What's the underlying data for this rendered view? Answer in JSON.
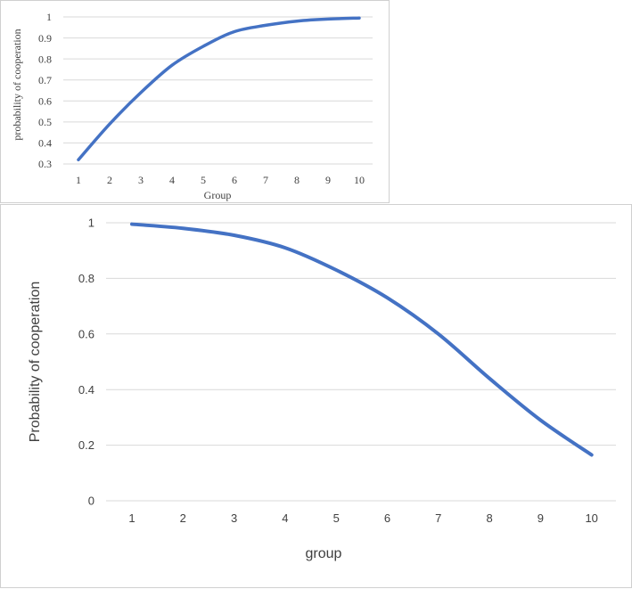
{
  "chart_data": [
    {
      "type": "line",
      "title": "",
      "xlabel": "Group",
      "ylabel": "probability of cooperation",
      "categories": [
        "1",
        "2",
        "3",
        "4",
        "5",
        "6",
        "7",
        "8",
        "9",
        "10"
      ],
      "x": [
        1,
        2,
        3,
        4,
        5,
        6,
        7,
        8,
        9,
        10
      ],
      "series": [
        {
          "values": [
            0.32,
            0.49,
            0.64,
            0.77,
            0.86,
            0.93,
            0.96,
            0.98,
            0.99,
            0.995
          ]
        }
      ],
      "yticks": [
        "0.3",
        "0.4",
        "0.5",
        "0.6",
        "0.7",
        "0.8",
        "0.9",
        "1"
      ],
      "ylim": [
        0.3,
        1
      ],
      "grid": true,
      "line_color": "#4472C4"
    },
    {
      "type": "line",
      "title": "",
      "xlabel": "group",
      "ylabel": "Probability of cooperation",
      "categories": [
        "1",
        "2",
        "3",
        "4",
        "5",
        "6",
        "7",
        "8",
        "9",
        "10"
      ],
      "x": [
        1,
        2,
        3,
        4,
        5,
        6,
        7,
        8,
        9,
        10
      ],
      "series": [
        {
          "values": [
            0.995,
            0.98,
            0.955,
            0.91,
            0.83,
            0.73,
            0.6,
            0.44,
            0.29,
            0.165
          ]
        }
      ],
      "yticks": [
        "0",
        "0.2",
        "0.4",
        "0.6",
        "0.8",
        "1"
      ],
      "ylim": [
        0,
        1
      ],
      "grid": true,
      "line_color": "#4472C4"
    }
  ]
}
